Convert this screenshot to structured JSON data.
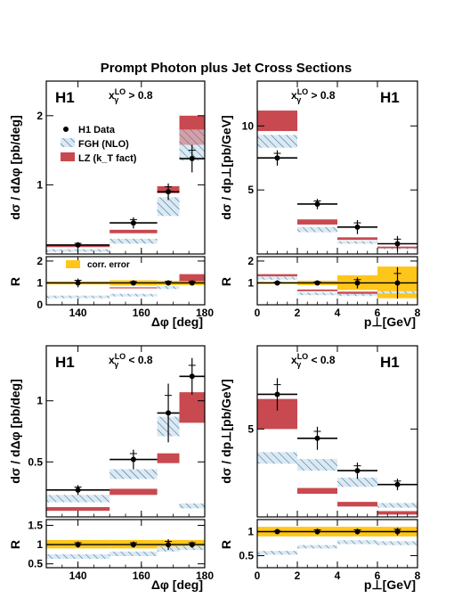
{
  "title": "Prompt Photon plus Jet Cross Sections",
  "legend": {
    "data": "H1 Data",
    "fgh": "FGH (NLO)",
    "lz": "LZ (k_T fact)",
    "corr": "corr. error"
  },
  "colors": {
    "lz": "#c8494f",
    "fgh_line": "#2a6f9c",
    "fgh_bg": "#dce9f2",
    "corr": "#ffc61a",
    "data": "#000000"
  },
  "chart_data": [
    {
      "id": "tl",
      "type": "bar",
      "experiment": "H1",
      "cut": "> 0.8",
      "xlabel": "Δφ [deg]",
      "ylabel": "dσ / dΔφ [pb/deg]",
      "xlim": [
        130,
        180
      ],
      "ylim": [
        0,
        2.5
      ],
      "xticks": [
        140,
        160,
        180
      ],
      "yticks": [
        1,
        2
      ],
      "legend": true,
      "data_points": [
        {
          "x": 140,
          "xlo": 130,
          "xhi": 150,
          "y": 0.13,
          "err": 0.04
        },
        {
          "x": 157.5,
          "xlo": 150,
          "xhi": 165,
          "y": 0.45,
          "err": 0.08
        },
        {
          "x": 168.5,
          "xlo": 165,
          "xhi": 172,
          "y": 0.9,
          "err": 0.12
        },
        {
          "x": 176,
          "xlo": 172,
          "xhi": 180,
          "y": 1.38,
          "err": 0.2
        }
      ],
      "fgh": [
        {
          "xlo": 130,
          "xhi": 150,
          "ylo": 0.03,
          "yhi": 0.07
        },
        {
          "xlo": 150,
          "xhi": 165,
          "ylo": 0.15,
          "yhi": 0.22
        },
        {
          "xlo": 165,
          "xhi": 172,
          "ylo": 0.55,
          "yhi": 0.82
        },
        {
          "xlo": 172,
          "xhi": 180,
          "ylo": 1.35,
          "yhi": 1.8
        }
      ],
      "lz": [
        {
          "xlo": 130,
          "xhi": 150,
          "ylo": 0.1,
          "yhi": 0.13
        },
        {
          "xlo": 150,
          "xhi": 165,
          "ylo": 0.3,
          "yhi": 0.35
        },
        {
          "xlo": 165,
          "xhi": 172,
          "ylo": 0.88,
          "yhi": 0.98
        },
        {
          "xlo": 172,
          "xhi": 180,
          "ylo": 1.58,
          "yhi": 2.0
        }
      ],
      "ratio": {
        "ylabel": "R",
        "ylim": [
          0,
          2.2
        ],
        "yticks": [
          0,
          1,
          2
        ],
        "points": [
          {
            "x": 140,
            "xlo": 130,
            "xhi": 150,
            "y": 1.0,
            "err": 0.2
          },
          {
            "x": 157.5,
            "xlo": 150,
            "xhi": 165,
            "y": 1.0,
            "err": 0.1
          },
          {
            "x": 168.5,
            "xlo": 165,
            "xhi": 172,
            "y": 1.0,
            "err": 0.12
          },
          {
            "x": 176,
            "xlo": 172,
            "xhi": 180,
            "y": 1.0,
            "err": 0.1
          }
        ],
        "corr": [
          {
            "xlo": 130,
            "xhi": 150,
            "ylo": 0.93,
            "yhi": 1.07
          },
          {
            "xlo": 150,
            "xhi": 165,
            "ylo": 0.88,
            "yhi": 1.12
          },
          {
            "xlo": 165,
            "xhi": 172,
            "ylo": 0.9,
            "yhi": 1.1
          },
          {
            "xlo": 172,
            "xhi": 180,
            "ylo": 0.9,
            "yhi": 1.1
          }
        ],
        "fgh": [
          {
            "xlo": 130,
            "xhi": 150,
            "ylo": 0.3,
            "yhi": 0.42
          },
          {
            "xlo": 150,
            "xhi": 165,
            "ylo": 0.38,
            "yhi": 0.5
          },
          {
            "xlo": 165,
            "xhi": 172,
            "ylo": 0.72,
            "yhi": 0.85
          },
          {
            "xlo": 172,
            "xhi": 180,
            "ylo": 1.15,
            "yhi": 1.3
          }
        ],
        "lz": [
          {
            "xlo": 150,
            "xhi": 165,
            "ylo": 0.75,
            "yhi": 0.8
          },
          {
            "xlo": 172,
            "xhi": 180,
            "ylo": 1.08,
            "yhi": 1.4
          }
        ]
      }
    },
    {
      "id": "tr",
      "type": "bar",
      "experiment": "H1",
      "cut": "> 0.8",
      "xlabel": "p⊥[GeV]",
      "ylabel": "dσ / dp⊥[pb/GeV]",
      "xlim": [
        0,
        8
      ],
      "ylim": [
        0,
        13.5
      ],
      "xticks": [
        0,
        2,
        4,
        6,
        8
      ],
      "yticks": [
        5,
        10
      ],
      "legend": false,
      "data_points": [
        {
          "x": 1,
          "xlo": 0,
          "xhi": 2,
          "y": 7.5,
          "err": 0.6
        },
        {
          "x": 3,
          "xlo": 2,
          "xhi": 4,
          "y": 3.9,
          "err": 0.4
        },
        {
          "x": 5,
          "xlo": 4,
          "xhi": 6,
          "y": 2.1,
          "err": 0.55
        },
        {
          "x": 7,
          "xlo": 6,
          "xhi": 8,
          "y": 0.8,
          "err": 0.6
        }
      ],
      "fgh": [
        {
          "xlo": 0,
          "xhi": 2,
          "ylo": 8.3,
          "yhi": 9.3
        },
        {
          "xlo": 2,
          "xhi": 4,
          "ylo": 1.7,
          "yhi": 2.1
        },
        {
          "xlo": 4,
          "xhi": 6,
          "ylo": 0.8,
          "yhi": 1.0
        },
        {
          "xlo": 6,
          "xhi": 8,
          "ylo": 0.38,
          "yhi": 0.46
        }
      ],
      "lz": [
        {
          "xlo": 0,
          "xhi": 2,
          "ylo": 9.6,
          "yhi": 11.2
        },
        {
          "xlo": 2,
          "xhi": 4,
          "ylo": 2.3,
          "yhi": 2.7
        },
        {
          "xlo": 4,
          "xhi": 6,
          "ylo": 1.1,
          "yhi": 1.3
        },
        {
          "xlo": 6,
          "xhi": 8,
          "ylo": 0.45,
          "yhi": 0.58
        }
      ],
      "ratio": {
        "ylabel": "R",
        "ylim": [
          0,
          2.2
        ],
        "yticks": [
          1,
          2
        ],
        "points": [
          {
            "x": 1,
            "xlo": 0,
            "xhi": 2,
            "y": 1.0,
            "err": 0.05
          },
          {
            "x": 3,
            "xlo": 2,
            "xhi": 4,
            "y": 1.0,
            "err": 0.08
          },
          {
            "x": 5,
            "xlo": 4,
            "xhi": 6,
            "y": 1.0,
            "err": 0.25
          },
          {
            "x": 7,
            "xlo": 6,
            "xhi": 8,
            "y": 1.0,
            "err": 0.72
          }
        ],
        "corr": [
          {
            "xlo": 0,
            "xhi": 2,
            "ylo": 0.95,
            "yhi": 1.05
          },
          {
            "xlo": 2,
            "xhi": 4,
            "ylo": 0.9,
            "yhi": 1.1
          },
          {
            "xlo": 4,
            "xhi": 6,
            "ylo": 0.68,
            "yhi": 1.35
          },
          {
            "xlo": 6,
            "xhi": 8,
            "ylo": 0.3,
            "yhi": 1.75
          }
        ],
        "fgh": [
          {
            "xlo": 0,
            "xhi": 2,
            "ylo": 1.15,
            "yhi": 1.28
          },
          {
            "xlo": 2,
            "xhi": 4,
            "ylo": 0.44,
            "yhi": 0.56
          },
          {
            "xlo": 4,
            "xhi": 6,
            "ylo": 0.4,
            "yhi": 0.5
          },
          {
            "xlo": 6,
            "xhi": 8,
            "ylo": 0.52,
            "yhi": 0.62
          }
        ],
        "lz": [
          {
            "xlo": 0,
            "xhi": 2,
            "ylo": 1.3,
            "yhi": 1.4
          },
          {
            "xlo": 2,
            "xhi": 4,
            "ylo": 0.62,
            "yhi": 0.7
          },
          {
            "xlo": 4,
            "xhi": 6,
            "ylo": 0.5,
            "yhi": 0.6
          }
        ]
      }
    },
    {
      "id": "bl",
      "type": "bar",
      "experiment": "H1",
      "cut": "< 0.8",
      "xlabel": "Δφ [deg]",
      "ylabel": "dσ / dΔφ [pb/deg]",
      "xlim": [
        130,
        180
      ],
      "ylim": [
        0.05,
        1.45
      ],
      "xticks": [
        140,
        160,
        180
      ],
      "yticks": [
        0.5,
        1
      ],
      "legend": false,
      "data_points": [
        {
          "x": 140,
          "xlo": 130,
          "xhi": 150,
          "y": 0.27,
          "err": 0.04
        },
        {
          "x": 157.5,
          "xlo": 150,
          "xhi": 165,
          "y": 0.52,
          "err": 0.08
        },
        {
          "x": 168.5,
          "xlo": 165,
          "xhi": 172,
          "y": 0.9,
          "err": 0.24
        },
        {
          "x": 176,
          "xlo": 172,
          "xhi": 180,
          "y": 1.2,
          "err": 0.15
        }
      ],
      "fgh": [
        {
          "xlo": 130,
          "xhi": 150,
          "ylo": 0.17,
          "yhi": 0.23
        },
        {
          "xlo": 150,
          "xhi": 165,
          "ylo": 0.36,
          "yhi": 0.44
        },
        {
          "xlo": 165,
          "xhi": 172,
          "ylo": 0.71,
          "yhi": 0.87
        },
        {
          "xlo": 172,
          "xhi": 180,
          "ylo": 0.12,
          "yhi": 0.16
        }
      ],
      "lz": [
        {
          "xlo": 130,
          "xhi": 150,
          "ylo": 0.1,
          "yhi": 0.13
        },
        {
          "xlo": 150,
          "xhi": 165,
          "ylo": 0.23,
          "yhi": 0.28
        },
        {
          "xlo": 165,
          "xhi": 172,
          "ylo": 0.49,
          "yhi": 0.57
        },
        {
          "xlo": 172,
          "xhi": 180,
          "ylo": 0.82,
          "yhi": 1.07
        }
      ],
      "ratio": {
        "ylabel": "R",
        "ylim": [
          0.4,
          1.65
        ],
        "yticks": [
          0.5,
          1,
          1.5
        ],
        "points": [
          {
            "x": 140,
            "xlo": 130,
            "xhi": 150,
            "y": 1.0,
            "err": 0.08
          },
          {
            "x": 157.5,
            "xlo": 150,
            "xhi": 165,
            "y": 1.0,
            "err": 0.08
          },
          {
            "x": 168.5,
            "xlo": 165,
            "xhi": 172,
            "y": 1.0,
            "err": 0.14
          },
          {
            "x": 176,
            "xlo": 172,
            "xhi": 180,
            "y": 1.0,
            "err": 0.08
          }
        ],
        "corr": [
          {
            "xlo": 130,
            "xhi": 150,
            "ylo": 0.9,
            "yhi": 1.12
          },
          {
            "xlo": 150,
            "xhi": 165,
            "ylo": 0.9,
            "yhi": 1.12
          },
          {
            "xlo": 165,
            "xhi": 172,
            "ylo": 0.9,
            "yhi": 1.12
          },
          {
            "xlo": 172,
            "xhi": 180,
            "ylo": 0.9,
            "yhi": 1.12
          }
        ],
        "fgh": [
          {
            "xlo": 130,
            "xhi": 150,
            "ylo": 0.63,
            "yhi": 0.75
          },
          {
            "xlo": 150,
            "xhi": 165,
            "ylo": 0.7,
            "yhi": 0.82
          },
          {
            "xlo": 165,
            "xhi": 172,
            "ylo": 0.82,
            "yhi": 0.95
          },
          {
            "xlo": 172,
            "xhi": 180,
            "ylo": 0.86,
            "yhi": 0.96
          }
        ],
        "lz": []
      }
    },
    {
      "id": "br",
      "type": "bar",
      "experiment": "H1",
      "cut": "< 0.8",
      "xlabel": "p⊥[GeV]",
      "ylabel": "dσ / dp⊥[pb/GeV]",
      "xlim": [
        0,
        8
      ],
      "ylim": [
        1.2,
        8.6
      ],
      "xticks": [
        0,
        2,
        4,
        6,
        8
      ],
      "yticks": [
        5
      ],
      "legend": false,
      "data_points": [
        {
          "x": 1,
          "xlo": 0,
          "xhi": 2,
          "y": 6.5,
          "err": 0.7
        },
        {
          "x": 3,
          "xlo": 2,
          "xhi": 4,
          "y": 4.6,
          "err": 0.5
        },
        {
          "x": 5,
          "xlo": 4,
          "xhi": 6,
          "y": 3.2,
          "err": 0.35
        },
        {
          "x": 7,
          "xlo": 6,
          "xhi": 8,
          "y": 2.6,
          "err": 0.25
        }
      ],
      "fgh": [
        {
          "xlo": 0,
          "xhi": 2,
          "ylo": 3.5,
          "yhi": 4.0
        },
        {
          "xlo": 2,
          "xhi": 4,
          "ylo": 3.2,
          "yhi": 3.7
        },
        {
          "xlo": 4,
          "xhi": 6,
          "ylo": 2.5,
          "yhi": 2.9
        },
        {
          "xlo": 6,
          "xhi": 8,
          "ylo": 1.6,
          "yhi": 1.8
        }
      ],
      "lz": [
        {
          "xlo": 0,
          "xhi": 2,
          "ylo": 5.0,
          "yhi": 6.3
        },
        {
          "xlo": 2,
          "xhi": 4,
          "ylo": 2.2,
          "yhi": 2.45
        },
        {
          "xlo": 4,
          "xhi": 6,
          "ylo": 1.65,
          "yhi": 1.85
        },
        {
          "xlo": 6,
          "xhi": 8,
          "ylo": 1.3,
          "yhi": 1.45
        }
      ],
      "ratio": {
        "ylabel": "R",
        "ylim": [
          0.25,
          1.25
        ],
        "yticks": [
          0.5,
          1
        ],
        "points": [
          {
            "x": 1,
            "xlo": 0,
            "xhi": 2,
            "y": 1.0,
            "err": 0.02
          },
          {
            "x": 3,
            "xlo": 2,
            "xhi": 4,
            "y": 1.0,
            "err": 0.06
          },
          {
            "x": 5,
            "xlo": 4,
            "xhi": 6,
            "y": 1.0,
            "err": 0.06
          },
          {
            "x": 7,
            "xlo": 6,
            "xhi": 8,
            "y": 1.0,
            "err": 0.08
          }
        ],
        "corr": [
          {
            "xlo": 0,
            "xhi": 2,
            "ylo": 0.9,
            "yhi": 1.1
          },
          {
            "xlo": 2,
            "xhi": 4,
            "ylo": 0.9,
            "yhi": 1.1
          },
          {
            "xlo": 4,
            "xhi": 6,
            "ylo": 0.9,
            "yhi": 1.1
          },
          {
            "xlo": 6,
            "xhi": 8,
            "ylo": 0.9,
            "yhi": 1.1
          }
        ],
        "fgh": [
          {
            "xlo": 0,
            "xhi": 2,
            "ylo": 0.52,
            "yhi": 0.6
          },
          {
            "xlo": 2,
            "xhi": 4,
            "ylo": 0.65,
            "yhi": 0.72
          },
          {
            "xlo": 4,
            "xhi": 6,
            "ylo": 0.74,
            "yhi": 0.82
          },
          {
            "xlo": 6,
            "xhi": 8,
            "ylo": 0.72,
            "yhi": 0.8
          }
        ],
        "lz": []
      }
    }
  ]
}
